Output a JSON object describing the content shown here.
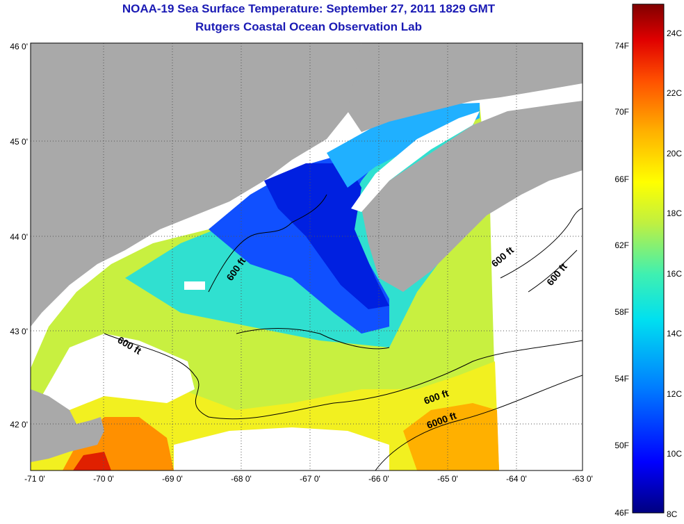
{
  "title": "NOAA-19 Sea Surface Temperature:  September 27, 2011 1829 GMT",
  "subtitle": "Rutgers Coastal Ocean Observation Lab",
  "x_ticks": [
    "-71 0'",
    "-70 0'",
    "-69 0'",
    "-68 0'",
    "-67 0'",
    "-66 0'",
    "-65 0'",
    "-64 0'",
    "-63 0'"
  ],
  "y_ticks": [
    "46 0'",
    "45 0'",
    "44 0'",
    "43 0'",
    "42 0'"
  ],
  "contour_labels": [
    "600 ft",
    "600 ft",
    "600 ft",
    "600 ft",
    "600 ft",
    "6000 ft"
  ],
  "colorbar": {
    "f_labels": [
      "74F",
      "70F",
      "66F",
      "62F",
      "58F",
      "54F",
      "50F",
      "46F"
    ],
    "c_labels": [
      "24C",
      "22C",
      "20C",
      "18C",
      "16C",
      "14C",
      "12C",
      "10C",
      "8C"
    ],
    "colors": [
      "#000080",
      "#0000ff",
      "#0080ff",
      "#00e0f0",
      "#40f0b0",
      "#c0f040",
      "#ffff00",
      "#ffb000",
      "#ff5000",
      "#e00000",
      "#800000"
    ]
  },
  "colors": {
    "land": "#a9a9a9",
    "cloud": "#ffffff",
    "title": "#1a1ab4"
  }
}
